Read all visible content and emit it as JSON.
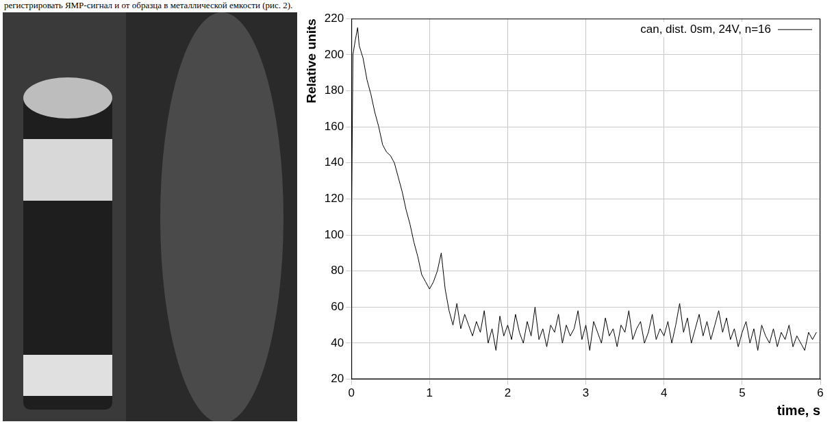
{
  "caption": "регистрировать ЯМР-сигнал и от образца в металлической емкости (рис. 2).",
  "chart_data": {
    "type": "line",
    "x_label": "time, s",
    "y_label": "Relative units",
    "xlim": [
      0,
      6
    ],
    "xticks": [
      0,
      1,
      2,
      3,
      4,
      5,
      6
    ],
    "ylim": [
      20,
      220
    ],
    "yticks": [
      20,
      40,
      60,
      80,
      100,
      120,
      140,
      160,
      180,
      200,
      220
    ],
    "grid": true,
    "legend": "upper right",
    "x": [
      0,
      0.02,
      0.05,
      0.08,
      0.1,
      0.15,
      0.2,
      0.25,
      0.3,
      0.35,
      0.4,
      0.45,
      0.5,
      0.55,
      0.6,
      0.65,
      0.7,
      0.75,
      0.8,
      0.85,
      0.9,
      0.95,
      1.0,
      1.05,
      1.1,
      1.15,
      1.2,
      1.25,
      1.3,
      1.35,
      1.4,
      1.45,
      1.5,
      1.55,
      1.6,
      1.65,
      1.7,
      1.75,
      1.8,
      1.85,
      1.9,
      1.95,
      2.0,
      2.05,
      2.1,
      2.15,
      2.2,
      2.25,
      2.3,
      2.35,
      2.4,
      2.45,
      2.5,
      2.55,
      2.6,
      2.65,
      2.7,
      2.75,
      2.8,
      2.85,
      2.9,
      2.95,
      3.0,
      3.05,
      3.1,
      3.15,
      3.2,
      3.25,
      3.3,
      3.35,
      3.4,
      3.45,
      3.5,
      3.55,
      3.6,
      3.65,
      3.7,
      3.75,
      3.8,
      3.85,
      3.9,
      3.95,
      4.0,
      4.05,
      4.1,
      4.15,
      4.2,
      4.25,
      4.3,
      4.35,
      4.4,
      4.45,
      4.5,
      4.55,
      4.6,
      4.65,
      4.7,
      4.75,
      4.8,
      4.85,
      4.9,
      4.95,
      5.0,
      5.05,
      5.1,
      5.15,
      5.2,
      5.25,
      5.3,
      5.35,
      5.4,
      5.45,
      5.5,
      5.55,
      5.6,
      5.65,
      5.7,
      5.75,
      5.8,
      5.85,
      5.9,
      5.95
    ],
    "series": [
      {
        "name": "can, dist. 0sm, 24V, n=16",
        "color": "#000000",
        "values": [
          100,
          200,
          208,
          215,
          205,
          198,
          186,
          178,
          168,
          160,
          150,
          146,
          144,
          140,
          132,
          124,
          114,
          106,
          96,
          88,
          78,
          74,
          70,
          74,
          80,
          90,
          70,
          58,
          50,
          62,
          48,
          56,
          50,
          44,
          52,
          46,
          58,
          40,
          48,
          36,
          55,
          44,
          50,
          42,
          56,
          46,
          40,
          52,
          44,
          60,
          42,
          48,
          38,
          50,
          46,
          56,
          40,
          50,
          44,
          48,
          58,
          42,
          50,
          36,
          52,
          46,
          40,
          54,
          44,
          48,
          38,
          50,
          46,
          58,
          42,
          48,
          52,
          40,
          46,
          56,
          42,
          48,
          44,
          52,
          40,
          50,
          62,
          46,
          54,
          40,
          48,
          56,
          44,
          52,
          42,
          50,
          58,
          46,
          54,
          42,
          48,
          38,
          46,
          52,
          40,
          48,
          36,
          50,
          44,
          40,
          48,
          38,
          46,
          42,
          50,
          38,
          44,
          40,
          36,
          46,
          42,
          46
        ]
      }
    ]
  }
}
